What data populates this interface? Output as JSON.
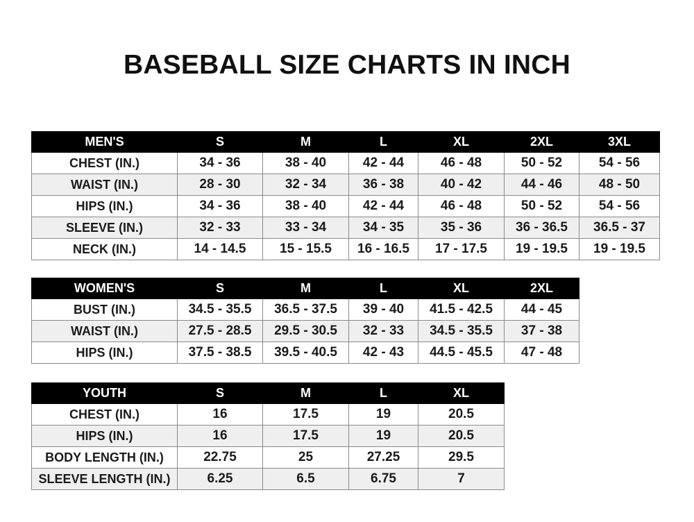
{
  "title": "BASEBALL SIZE CHARTS IN INCH",
  "tables": [
    {
      "id": "men",
      "header": [
        "MEN'S",
        "S",
        "M",
        "L",
        "XL",
        "2XL",
        "3XL"
      ],
      "rows": [
        [
          "CHEST (IN.)",
          "34 - 36",
          "38 - 40",
          "42 - 44",
          "46 - 48",
          "50 - 52",
          "54 - 56"
        ],
        [
          "WAIST (IN.)",
          "28 - 30",
          "32 - 34",
          "36 - 38",
          "40 - 42",
          "44 - 46",
          "48 - 50"
        ],
        [
          "HIPS (IN.)",
          "34 - 36",
          "38 - 40",
          "42 - 44",
          "46 - 48",
          "50 - 52",
          "54 - 56"
        ],
        [
          "SLEEVE (IN.)",
          "32 - 33",
          "33 - 34",
          "34 - 35",
          "35 - 36",
          "36 - 36.5",
          "36.5 - 37"
        ],
        [
          "NECK (IN.)",
          "14 - 14.5",
          "15 - 15.5",
          "16 - 16.5",
          "17 - 17.5",
          "19 - 19.5",
          "19 - 19.5"
        ]
      ]
    },
    {
      "id": "women",
      "header": [
        "WOMEN'S",
        "S",
        "M",
        "L",
        "XL",
        "2XL"
      ],
      "rows": [
        [
          "BUST (IN.)",
          "34.5 - 35.5",
          "36.5 - 37.5",
          "39 - 40",
          "41.5 - 42.5",
          "44 - 45"
        ],
        [
          "WAIST (IN.)",
          "27.5 - 28.5",
          "29.5 - 30.5",
          "32 - 33",
          "34.5 - 35.5",
          "37 - 38"
        ],
        [
          "HIPS (IN.)",
          "37.5 - 38.5",
          "39.5 - 40.5",
          "42 - 43",
          "44.5 - 45.5",
          "47 - 48"
        ]
      ]
    },
    {
      "id": "youth",
      "header": [
        "YOUTH",
        "S",
        "M",
        "L",
        "XL"
      ],
      "rows": [
        [
          "CHEST (IN.)",
          "16",
          "17.5",
          "19",
          "20.5"
        ],
        [
          "HIPS (IN.)",
          "16",
          "17.5",
          "19",
          "20.5"
        ],
        [
          "BODY LENGTH (IN.)",
          "22.75",
          "25",
          "27.25",
          "29.5"
        ],
        [
          "SLEEVE LENGTH (IN.)",
          "6.25",
          "6.5",
          "6.75",
          "7"
        ]
      ]
    }
  ]
}
